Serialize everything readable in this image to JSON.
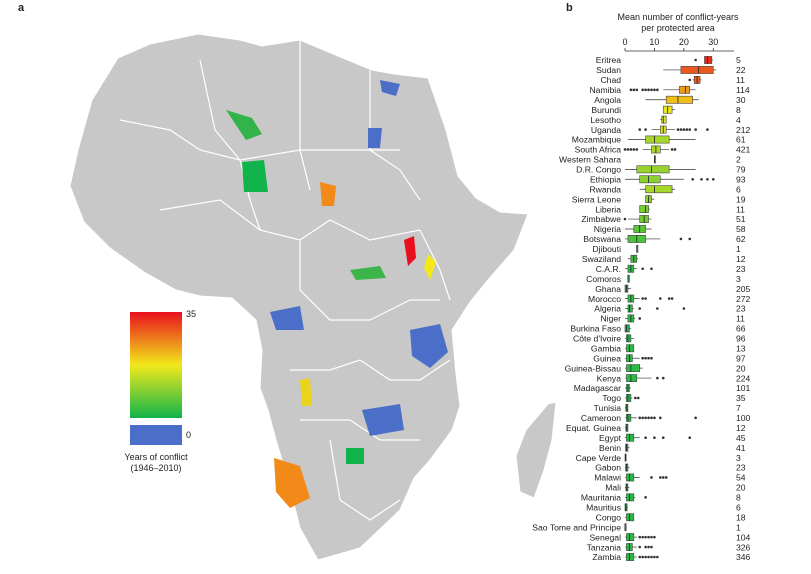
{
  "panels": {
    "a": "a",
    "b": "b"
  },
  "legend": {
    "title_line1": "Years of conflict",
    "title_line2": "(1946–2010)",
    "max_label": "35",
    "zero_label": "0",
    "colors": {
      "high": "#e8101e",
      "mid": "#f2e81a",
      "low": "#10b44a",
      "none": "#4b6fc9"
    }
  },
  "chart_data": [
    {
      "type": "map",
      "description_source": "choropleth of protected areas in Africa colored by years of conflict",
      "colorbar": {
        "min": 0,
        "max": 35,
        "label": "Years of conflict (1946–2010)"
      }
    },
    {
      "type": "box",
      "title": "Mean number of conflict-years per protected area",
      "title_line1": "Mean number of conflict-years",
      "title_line2": "per protected area",
      "xlim": [
        0,
        35
      ],
      "xticks": [
        0,
        10,
        20,
        30
      ],
      "countries": [
        {
          "name": "Eritrea",
          "n": 5,
          "q1": 27,
          "med": 28,
          "q3": 29.5,
          "lo": 27,
          "hi": 30,
          "out": [
            24
          ]
        },
        {
          "name": "Sudan",
          "n": 22,
          "q1": 19,
          "med": 25,
          "q3": 30,
          "lo": 13,
          "hi": 31,
          "out": []
        },
        {
          "name": "Chad",
          "n": 11,
          "q1": 23.5,
          "med": 24.5,
          "q3": 25.5,
          "lo": 23,
          "hi": 26,
          "out": [
            22
          ]
        },
        {
          "name": "Namibia",
          "n": 114,
          "q1": 18.5,
          "med": 20.5,
          "q3": 22,
          "lo": 13,
          "hi": 24,
          "out": [
            2,
            3,
            4,
            6,
            7,
            8,
            9,
            10,
            11
          ]
        },
        {
          "name": "Angola",
          "n": 30,
          "q1": 14,
          "med": 18,
          "q3": 23,
          "lo": 7,
          "hi": 25,
          "out": []
        },
        {
          "name": "Burundi",
          "n": 8,
          "q1": 13,
          "med": 14.5,
          "q3": 16,
          "lo": 13,
          "hi": 17,
          "out": []
        },
        {
          "name": "Lesotho",
          "n": 4,
          "q1": 12.5,
          "med": 13,
          "q3": 14,
          "lo": 12,
          "hi": 14,
          "out": []
        },
        {
          "name": "Uganda",
          "n": 212,
          "q1": 12,
          "med": 13,
          "q3": 14,
          "lo": 9,
          "hi": 17,
          "out": [
            5,
            7,
            18,
            19,
            20,
            21,
            22,
            24,
            28
          ]
        },
        {
          "name": "Mozambique",
          "n": 61,
          "q1": 7,
          "med": 10,
          "q3": 15,
          "lo": 1,
          "hi": 24,
          "out": []
        },
        {
          "name": "South Africa",
          "n": 421,
          "q1": 9,
          "med": 10.5,
          "q3": 12,
          "lo": 6,
          "hi": 15,
          "out": [
            0,
            1,
            2,
            3,
            4,
            16,
            17
          ]
        },
        {
          "name": "Western Sahara",
          "n": 2,
          "q1": 10,
          "med": 10,
          "q3": 10,
          "lo": 10,
          "hi": 10,
          "out": []
        },
        {
          "name": "D.R. Congo",
          "n": 79,
          "q1": 4,
          "med": 9,
          "q3": 15,
          "lo": 0,
          "hi": 24,
          "out": []
        },
        {
          "name": "Ethiopia",
          "n": 93,
          "q1": 5,
          "med": 8,
          "q3": 12,
          "lo": 0,
          "hi": 20,
          "out": [
            23,
            26,
            28,
            30
          ]
        },
        {
          "name": "Rwanda",
          "n": 6,
          "q1": 7,
          "med": 10,
          "q3": 16,
          "lo": 5,
          "hi": 17,
          "out": []
        },
        {
          "name": "Sierra Leone",
          "n": 19,
          "q1": 7,
          "med": 8,
          "q3": 9,
          "lo": 7,
          "hi": 10,
          "out": []
        },
        {
          "name": "Liberia",
          "n": 11,
          "q1": 5,
          "med": 7,
          "q3": 8,
          "lo": 5,
          "hi": 8.5,
          "out": []
        },
        {
          "name": "Zimbabwe",
          "n": 51,
          "q1": 5,
          "med": 6.5,
          "q3": 8,
          "lo": 1,
          "hi": 9,
          "out": [
            0
          ]
        },
        {
          "name": "Nigeria",
          "n": 58,
          "q1": 3,
          "med": 5,
          "q3": 7,
          "lo": 0,
          "hi": 9,
          "out": []
        },
        {
          "name": "Botswana",
          "n": 62,
          "q1": 1,
          "med": 4,
          "q3": 7,
          "lo": 0,
          "hi": 12,
          "out": [
            19,
            22
          ]
        },
        {
          "name": "Djibouti",
          "n": 1,
          "q1": 4,
          "med": 4,
          "q3": 4,
          "lo": 4,
          "hi": 4,
          "out": []
        },
        {
          "name": "Swaziland",
          "n": 12,
          "q1": 2,
          "med": 3,
          "q3": 4,
          "lo": 1,
          "hi": 4.5,
          "out": []
        },
        {
          "name": "C.A.R.",
          "n": 23,
          "q1": 1,
          "med": 2,
          "q3": 3,
          "lo": 0,
          "hi": 4,
          "out": [
            6,
            9
          ]
        },
        {
          "name": "Comoros",
          "n": 3,
          "q1": 1,
          "med": 1,
          "q3": 1.5,
          "lo": 1,
          "hi": 1.5,
          "out": []
        },
        {
          "name": "Ghana",
          "n": 205,
          "q1": 0,
          "med": 0.5,
          "q3": 1,
          "lo": 0,
          "hi": 2,
          "out": []
        },
        {
          "name": "Morocco",
          "n": 272,
          "q1": 1,
          "med": 2,
          "q3": 3,
          "lo": 0,
          "hi": 5,
          "out": [
            6,
            7,
            12,
            15,
            16
          ]
        },
        {
          "name": "Algeria",
          "n": 23,
          "q1": 1,
          "med": 1.5,
          "q3": 2.5,
          "lo": 0,
          "hi": 3,
          "out": [
            5,
            11,
            20
          ]
        },
        {
          "name": "Niger",
          "n": 11,
          "q1": 1,
          "med": 2,
          "q3": 3,
          "lo": 0,
          "hi": 3.5,
          "out": [
            5
          ]
        },
        {
          "name": "Burkina Faso",
          "n": 66,
          "q1": 0,
          "med": 0.5,
          "q3": 1.5,
          "lo": 0,
          "hi": 2,
          "out": []
        },
        {
          "name": "Côte d'Ivoire",
          "n": 96,
          "q1": 0.5,
          "med": 1,
          "q3": 2,
          "lo": 0,
          "hi": 3,
          "out": []
        },
        {
          "name": "Gambia",
          "n": 13,
          "q1": 0.5,
          "med": 1.5,
          "q3": 3,
          "lo": 0,
          "hi": 3,
          "out": []
        },
        {
          "name": "Guinea",
          "n": 97,
          "q1": 0.5,
          "med": 1.5,
          "q3": 2.5,
          "lo": 0,
          "hi": 5,
          "out": [
            6,
            7,
            8,
            9
          ]
        },
        {
          "name": "Guinea-Bissau",
          "n": 20,
          "q1": 0.5,
          "med": 2,
          "q3": 5,
          "lo": 0,
          "hi": 6,
          "out": []
        },
        {
          "name": "Kenya",
          "n": 224,
          "q1": 0.5,
          "med": 2,
          "q3": 4,
          "lo": 0,
          "hi": 9,
          "out": [
            11,
            13
          ]
        },
        {
          "name": "Madagascar",
          "n": 101,
          "q1": 0.5,
          "med": 1,
          "q3": 1.5,
          "lo": 0,
          "hi": 2,
          "out": []
        },
        {
          "name": "Togo",
          "n": 35,
          "q1": 0.5,
          "med": 1,
          "q3": 2,
          "lo": 0,
          "hi": 2.5,
          "out": [
            3.5,
            4.5
          ]
        },
        {
          "name": "Tunisia",
          "n": 7,
          "q1": 0.3,
          "med": 0.6,
          "q3": 1,
          "lo": 0,
          "hi": 1,
          "out": []
        },
        {
          "name": "Cameroon",
          "n": 100,
          "q1": 0.5,
          "med": 1,
          "q3": 2,
          "lo": 0,
          "hi": 4,
          "out": [
            5,
            6,
            7,
            8,
            9,
            10,
            12,
            24
          ]
        },
        {
          "name": "Equat. Guinea",
          "n": 12,
          "q1": 0.3,
          "med": 0.6,
          "q3": 1,
          "lo": 0,
          "hi": 1,
          "out": []
        },
        {
          "name": "Egypt",
          "n": 45,
          "q1": 0.5,
          "med": 1.5,
          "q3": 3,
          "lo": 0,
          "hi": 5,
          "out": [
            7,
            10,
            13,
            22
          ]
        },
        {
          "name": "Benin",
          "n": 41,
          "q1": 0.2,
          "med": 0.5,
          "q3": 1,
          "lo": 0,
          "hi": 1.5,
          "out": []
        },
        {
          "name": "Cape Verde",
          "n": 3,
          "q1": 0,
          "med": 0.2,
          "q3": 0.4,
          "lo": 0,
          "hi": 0.5,
          "out": []
        },
        {
          "name": "Gabon",
          "n": 23,
          "q1": 0.2,
          "med": 0.5,
          "q3": 1,
          "lo": 0,
          "hi": 1.5,
          "out": []
        },
        {
          "name": "Malawi",
          "n": 54,
          "q1": 0.5,
          "med": 1.5,
          "q3": 3,
          "lo": 0,
          "hi": 5,
          "out": [
            9,
            12,
            13,
            14
          ]
        },
        {
          "name": "Mali",
          "n": 20,
          "q1": 0.3,
          "med": 0.6,
          "q3": 1,
          "lo": 0,
          "hi": 1.5,
          "out": []
        },
        {
          "name": "Mauritania",
          "n": 8,
          "q1": 0.5,
          "med": 1.5,
          "q3": 3,
          "lo": 0,
          "hi": 3.5,
          "out": [
            7
          ]
        },
        {
          "name": "Mauritius",
          "n": 6,
          "q1": 0,
          "med": 0.3,
          "q3": 0.7,
          "lo": 0,
          "hi": 1,
          "out": []
        },
        {
          "name": "Congo",
          "n": 18,
          "q1": 0.5,
          "med": 1.5,
          "q3": 3,
          "lo": 0,
          "hi": 3,
          "out": []
        },
        {
          "name": "Sao Tome and Principe",
          "n": 1,
          "q1": 0,
          "med": 0,
          "q3": 0,
          "lo": 0,
          "hi": 0,
          "out": []
        },
        {
          "name": "Senegal",
          "n": 104,
          "q1": 0.5,
          "med": 1.5,
          "q3": 3,
          "lo": 0,
          "hi": 4,
          "out": [
            5,
            6,
            7,
            8,
            9,
            10
          ]
        },
        {
          "name": "Tanzania",
          "n": 326,
          "q1": 0.5,
          "med": 1.5,
          "q3": 2.5,
          "lo": 0,
          "hi": 4,
          "out": [
            5,
            7,
            8,
            9
          ]
        },
        {
          "name": "Zambia",
          "n": 346,
          "q1": 0.5,
          "med": 1.5,
          "q3": 3,
          "lo": 0,
          "hi": 4,
          "out": [
            5,
            6,
            7,
            8,
            9,
            10,
            11
          ]
        }
      ]
    }
  ]
}
